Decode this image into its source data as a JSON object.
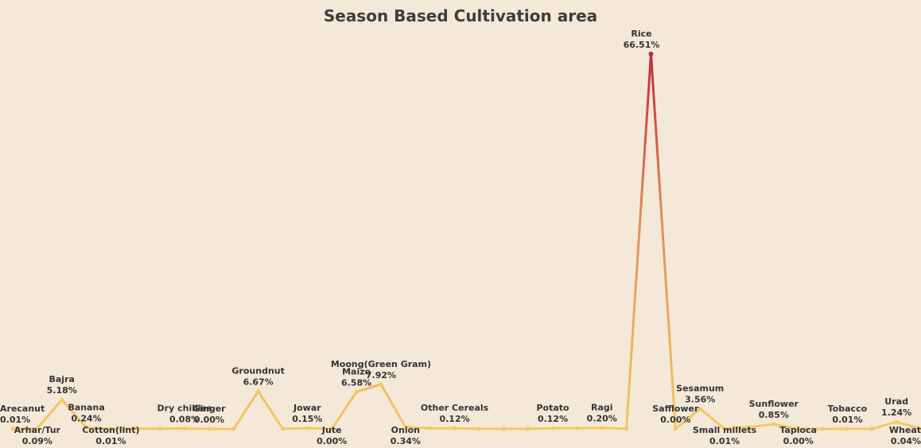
{
  "chart_data": {
    "type": "line",
    "title": "Season Based Cultivation area",
    "xlabel": "",
    "ylabel": "",
    "ylim": [
      0,
      70
    ],
    "grid": false,
    "colors": {
      "low": "#f5c862",
      "mid": "#e0905a",
      "high": "#c22a3e"
    },
    "points": [
      {
        "label": "Arecanut",
        "value_text": "0.01%",
        "value": 0.01,
        "labeled": true,
        "label_pos": "above"
      },
      {
        "label": "Arhar/Tur",
        "value_text": "0.09%",
        "value": 0.09,
        "labeled": true,
        "label_pos": "below"
      },
      {
        "label": "Bajra",
        "value_text": "5.18%",
        "value": 5.18,
        "labeled": true,
        "label_pos": "above"
      },
      {
        "label": "Banana",
        "value_text": "0.24%",
        "value": 0.24,
        "labeled": true,
        "label_pos": "above"
      },
      {
        "label": "Cotton(lint)",
        "value_text": "0.01%",
        "value": 0.01,
        "labeled": true,
        "label_pos": "below"
      },
      {
        "label": "",
        "value_text": "",
        "value": 0.05,
        "labeled": false
      },
      {
        "label": "",
        "value_text": "",
        "value": 0.05,
        "labeled": false
      },
      {
        "label": "Dry chillies",
        "value_text": "0.08%",
        "value": 0.08,
        "labeled": true,
        "label_pos": "above"
      },
      {
        "label": "Ginger",
        "value_text": "0.00%",
        "value": 0.0,
        "labeled": true,
        "label_pos": "above"
      },
      {
        "label": "",
        "value_text": "",
        "value": 0.0,
        "labeled": false
      },
      {
        "label": "Groundnut",
        "value_text": "6.67%",
        "value": 6.67,
        "labeled": true,
        "label_pos": "above"
      },
      {
        "label": "",
        "value_text": "",
        "value": 0.02,
        "labeled": false
      },
      {
        "label": "Jowar",
        "value_text": "0.15%",
        "value": 0.15,
        "labeled": true,
        "label_pos": "above"
      },
      {
        "label": "Jute",
        "value_text": "0.00%",
        "value": 0.0,
        "labeled": true,
        "label_pos": "below"
      },
      {
        "label": "Maize",
        "value_text": "6.58%",
        "value": 6.58,
        "labeled": true,
        "label_pos": "above"
      },
      {
        "label": "Moong(Green Gram)",
        "value_text": "7.92%",
        "value": 7.92,
        "labeled": true,
        "label_pos": "above"
      },
      {
        "label": "Onion",
        "value_text": "0.34%",
        "value": 0.34,
        "labeled": true,
        "label_pos": "below"
      },
      {
        "label": "",
        "value_text": "",
        "value": 0.1,
        "labeled": false
      },
      {
        "label": "Other Cereals",
        "value_text": "0.12%",
        "value": 0.12,
        "labeled": true,
        "label_pos": "above"
      },
      {
        "label": "",
        "value_text": "",
        "value": 0.02,
        "labeled": false
      },
      {
        "label": "",
        "value_text": "",
        "value": 0.01,
        "labeled": false
      },
      {
        "label": "",
        "value_text": "",
        "value": 0.01,
        "labeled": false
      },
      {
        "label": "Potato",
        "value_text": "0.12%",
        "value": 0.12,
        "labeled": true,
        "label_pos": "above"
      },
      {
        "label": "",
        "value_text": "",
        "value": 0.12,
        "labeled": false
      },
      {
        "label": "Ragi",
        "value_text": "0.20%",
        "value": 0.2,
        "labeled": true,
        "label_pos": "above"
      },
      {
        "label": "",
        "value_text": "",
        "value": 0.02,
        "labeled": false
      },
      {
        "label": "Rice",
        "value_text": "66.51%",
        "value": 66.51,
        "labeled": true,
        "label_pos": "above"
      },
      {
        "label": "Safflower",
        "value_text": "0.00%",
        "value": 0.0,
        "labeled": true,
        "label_pos": "above"
      },
      {
        "label": "Sesamum",
        "value_text": "3.56%",
        "value": 3.56,
        "labeled": true,
        "label_pos": "above"
      },
      {
        "label": "Small millets",
        "value_text": "0.01%",
        "value": 0.01,
        "labeled": true,
        "label_pos": "below"
      },
      {
        "label": "",
        "value_text": "",
        "value": 0.3,
        "labeled": false
      },
      {
        "label": "Sunflower",
        "value_text": "0.85%",
        "value": 0.85,
        "labeled": true,
        "label_pos": "above"
      },
      {
        "label": "Tapioca",
        "value_text": "0.00%",
        "value": 0.0,
        "labeled": true,
        "label_pos": "below"
      },
      {
        "label": "",
        "value_text": "",
        "value": 0.0,
        "labeled": false
      },
      {
        "label": "Tobacco",
        "value_text": "0.01%",
        "value": 0.01,
        "labeled": true,
        "label_pos": "above"
      },
      {
        "label": "",
        "value_text": "",
        "value": 0.01,
        "labeled": false
      },
      {
        "label": "Urad",
        "value_text": "1.24%",
        "value": 1.24,
        "labeled": true,
        "label_pos": "above"
      },
      {
        "label": "Wheat",
        "value_text": "0.04%",
        "value": 0.04,
        "labeled": true,
        "label_pos": "below"
      }
    ]
  }
}
